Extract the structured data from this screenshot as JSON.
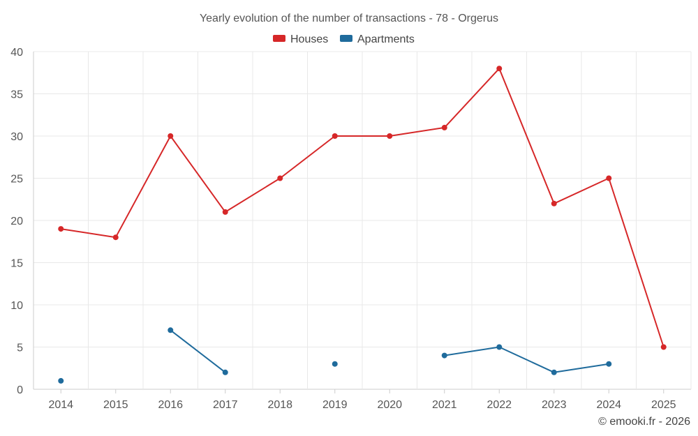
{
  "chart_data": {
    "type": "line",
    "title": "Yearly evolution of the number of transactions - 78 - Orgerus",
    "xlabel": "",
    "ylabel": "",
    "categories": [
      "2014",
      "2015",
      "2016",
      "2017",
      "2018",
      "2019",
      "2020",
      "2021",
      "2022",
      "2023",
      "2024",
      "2025"
    ],
    "ylim": [
      0,
      40
    ],
    "yticks": [
      0,
      5,
      10,
      15,
      20,
      25,
      30,
      35,
      40
    ],
    "grid": true,
    "legend_position": "top-center",
    "series": [
      {
        "name": "Houses",
        "color": "#d62728",
        "values": [
          19,
          18,
          30,
          21,
          25,
          30,
          30,
          31,
          38,
          22,
          25,
          5
        ]
      },
      {
        "name": "Apartments",
        "color": "#1f6b9c",
        "values": [
          1,
          null,
          7,
          2,
          null,
          3,
          null,
          4,
          5,
          2,
          3,
          null
        ]
      }
    ]
  },
  "credit": "© emooki.fr - 2026"
}
